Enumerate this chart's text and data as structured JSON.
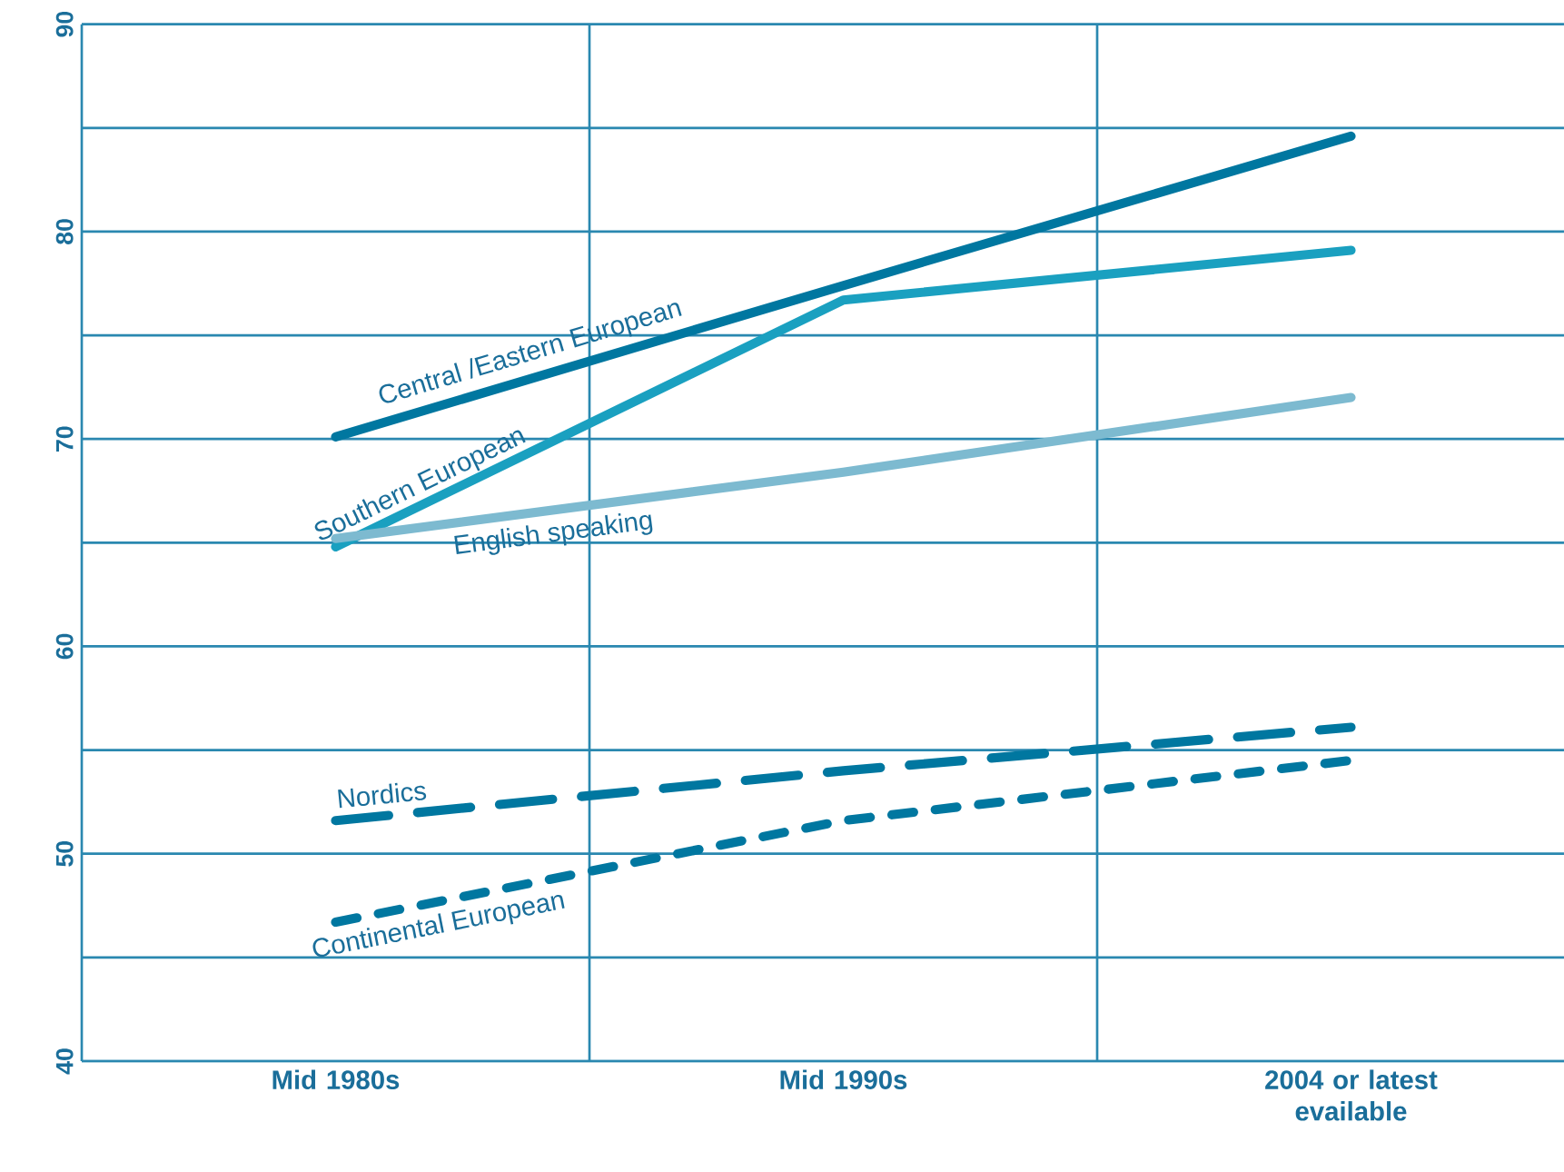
{
  "chart_data": {
    "type": "line",
    "categories": [
      "Mid 1980s",
      "Mid 1990s",
      "2004 or latest evailable"
    ],
    "series": [
      {
        "name": "Central /Eastern European",
        "color": "#0077a0",
        "values": [
          70.1,
          77.4,
          84.6
        ],
        "line_style": "solid"
      },
      {
        "name": "Southern European",
        "color": "#1aa0c0",
        "values": [
          64.8,
          76.7,
          79.1
        ],
        "line_style": "solid"
      },
      {
        "name": "English speaking",
        "color": "#7dbad0",
        "values": [
          65.2,
          68.4,
          72.0
        ],
        "line_style": "solid"
      },
      {
        "name": "Nordics",
        "color": "#0077a0",
        "values": [
          51.6,
          54.0,
          56.1
        ],
        "line_style": "dashed"
      },
      {
        "name": "Continental European",
        "color": "#0077a0",
        "values": [
          46.7,
          51.6,
          54.5
        ],
        "line_style": "dotted"
      }
    ],
    "ylim": [
      40,
      90
    ],
    "yticks": [
      40,
      {
        "value": 45,
        "label": null
      },
      50,
      {
        "value": 55,
        "label": null
      },
      60,
      {
        "value": 65,
        "label": null
      },
      70,
      {
        "value": 75,
        "label": null
      },
      80,
      {
        "value": 85,
        "label": null
      },
      90
    ],
    "grid": true,
    "legend": false,
    "marker": "none"
  }
}
